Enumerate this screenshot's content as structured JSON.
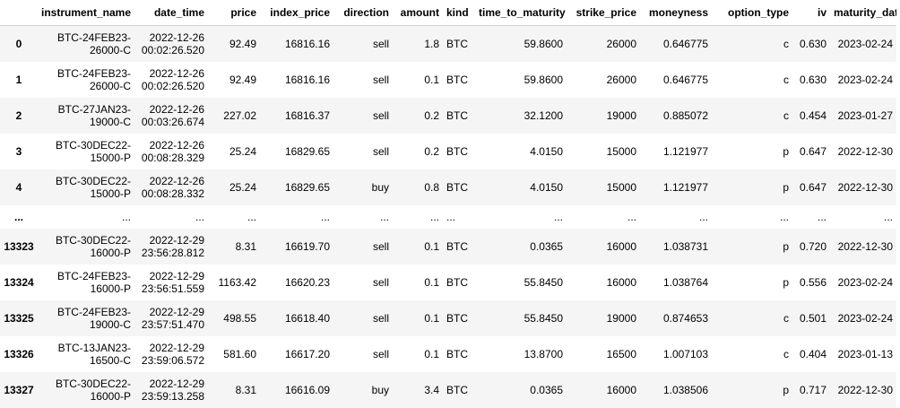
{
  "columns": [
    "",
    "instrument_name",
    "date_time",
    "price",
    "index_price",
    "direction",
    "amount",
    "kind",
    "time_to_maturity",
    "strike_price",
    "moneyness",
    "option_type",
    "iv",
    "maturity_date"
  ],
  "rows": [
    {
      "index": "0",
      "inst": [
        "BTC-24FEB23-",
        "26000-C"
      ],
      "dt": [
        "2022-12-26",
        "00:02:26.520"
      ],
      "price": "92.49",
      "index_price": "16816.16",
      "direction": "sell",
      "amount": "1.8",
      "kind": "BTC",
      "ttm": "59.8600",
      "strike": "26000",
      "moneyness": "0.646775",
      "otype": "c",
      "iv": "0.630",
      "mdate": "2023-02-24"
    },
    {
      "index": "1",
      "inst": [
        "BTC-24FEB23-",
        "26000-C"
      ],
      "dt": [
        "2022-12-26",
        "00:02:26.520"
      ],
      "price": "92.49",
      "index_price": "16816.16",
      "direction": "sell",
      "amount": "0.1",
      "kind": "BTC",
      "ttm": "59.8600",
      "strike": "26000",
      "moneyness": "0.646775",
      "otype": "c",
      "iv": "0.630",
      "mdate": "2023-02-24"
    },
    {
      "index": "2",
      "inst": [
        "BTC-27JAN23-",
        "19000-C"
      ],
      "dt": [
        "2022-12-26",
        "00:03:26.674"
      ],
      "price": "227.02",
      "index_price": "16816.37",
      "direction": "sell",
      "amount": "0.2",
      "kind": "BTC",
      "ttm": "32.1200",
      "strike": "19000",
      "moneyness": "0.885072",
      "otype": "c",
      "iv": "0.454",
      "mdate": "2023-01-27"
    },
    {
      "index": "3",
      "inst": [
        "BTC-30DEC22-",
        "15000-P"
      ],
      "dt": [
        "2022-12-26",
        "00:08:28.329"
      ],
      "price": "25.24",
      "index_price": "16829.65",
      "direction": "sell",
      "amount": "0.2",
      "kind": "BTC",
      "ttm": "4.0150",
      "strike": "15000",
      "moneyness": "1.121977",
      "otype": "p",
      "iv": "0.647",
      "mdate": "2022-12-30"
    },
    {
      "index": "4",
      "inst": [
        "BTC-30DEC22-",
        "15000-P"
      ],
      "dt": [
        "2022-12-26",
        "00:08:28.332"
      ],
      "price": "25.24",
      "index_price": "16829.65",
      "direction": "buy",
      "amount": "0.8",
      "kind": "BTC",
      "ttm": "4.0150",
      "strike": "15000",
      "moneyness": "1.121977",
      "otype": "p",
      "iv": "0.647",
      "mdate": "2022-12-30"
    },
    {
      "ellipsis": true,
      "index": "...",
      "cell": "..."
    },
    {
      "index": "13323",
      "inst": [
        "BTC-30DEC22-",
        "16000-P"
      ],
      "dt": [
        "2022-12-29",
        "23:56:28.812"
      ],
      "price": "8.31",
      "index_price": "16619.70",
      "direction": "sell",
      "amount": "0.1",
      "kind": "BTC",
      "ttm": "0.0365",
      "strike": "16000",
      "moneyness": "1.038731",
      "otype": "p",
      "iv": "0.720",
      "mdate": "2022-12-30"
    },
    {
      "index": "13324",
      "inst": [
        "BTC-24FEB23-",
        "16000-P"
      ],
      "dt": [
        "2022-12-29",
        "23:56:51.559"
      ],
      "price": "1163.42",
      "index_price": "16620.23",
      "direction": "sell",
      "amount": "0.1",
      "kind": "BTC",
      "ttm": "55.8450",
      "strike": "16000",
      "moneyness": "1.038764",
      "otype": "p",
      "iv": "0.556",
      "mdate": "2023-02-24"
    },
    {
      "index": "13325",
      "inst": [
        "BTC-24FEB23-",
        "19000-C"
      ],
      "dt": [
        "2022-12-29",
        "23:57:51.470"
      ],
      "price": "498.55",
      "index_price": "16618.40",
      "direction": "sell",
      "amount": "0.1",
      "kind": "BTC",
      "ttm": "55.8450",
      "strike": "19000",
      "moneyness": "0.874653",
      "otype": "c",
      "iv": "0.501",
      "mdate": "2023-02-24"
    },
    {
      "index": "13326",
      "inst": [
        "BTC-13JAN23-",
        "16500-C"
      ],
      "dt": [
        "2022-12-29",
        "23:59:06.572"
      ],
      "price": "581.60",
      "index_price": "16617.20",
      "direction": "sell",
      "amount": "0.1",
      "kind": "BTC",
      "ttm": "13.8700",
      "strike": "16500",
      "moneyness": "1.007103",
      "otype": "c",
      "iv": "0.404",
      "mdate": "2023-01-13"
    },
    {
      "index": "13327",
      "inst": [
        "BTC-30DEC22-",
        "16000-P"
      ],
      "dt": [
        "2022-12-29",
        "23:59:13.258"
      ],
      "price": "8.31",
      "index_price": "16616.09",
      "direction": "buy",
      "amount": "3.4",
      "kind": "BTC",
      "ttm": "0.0365",
      "strike": "16000",
      "moneyness": "1.038506",
      "otype": "p",
      "iv": "0.717",
      "mdate": "2022-12-30"
    }
  ]
}
